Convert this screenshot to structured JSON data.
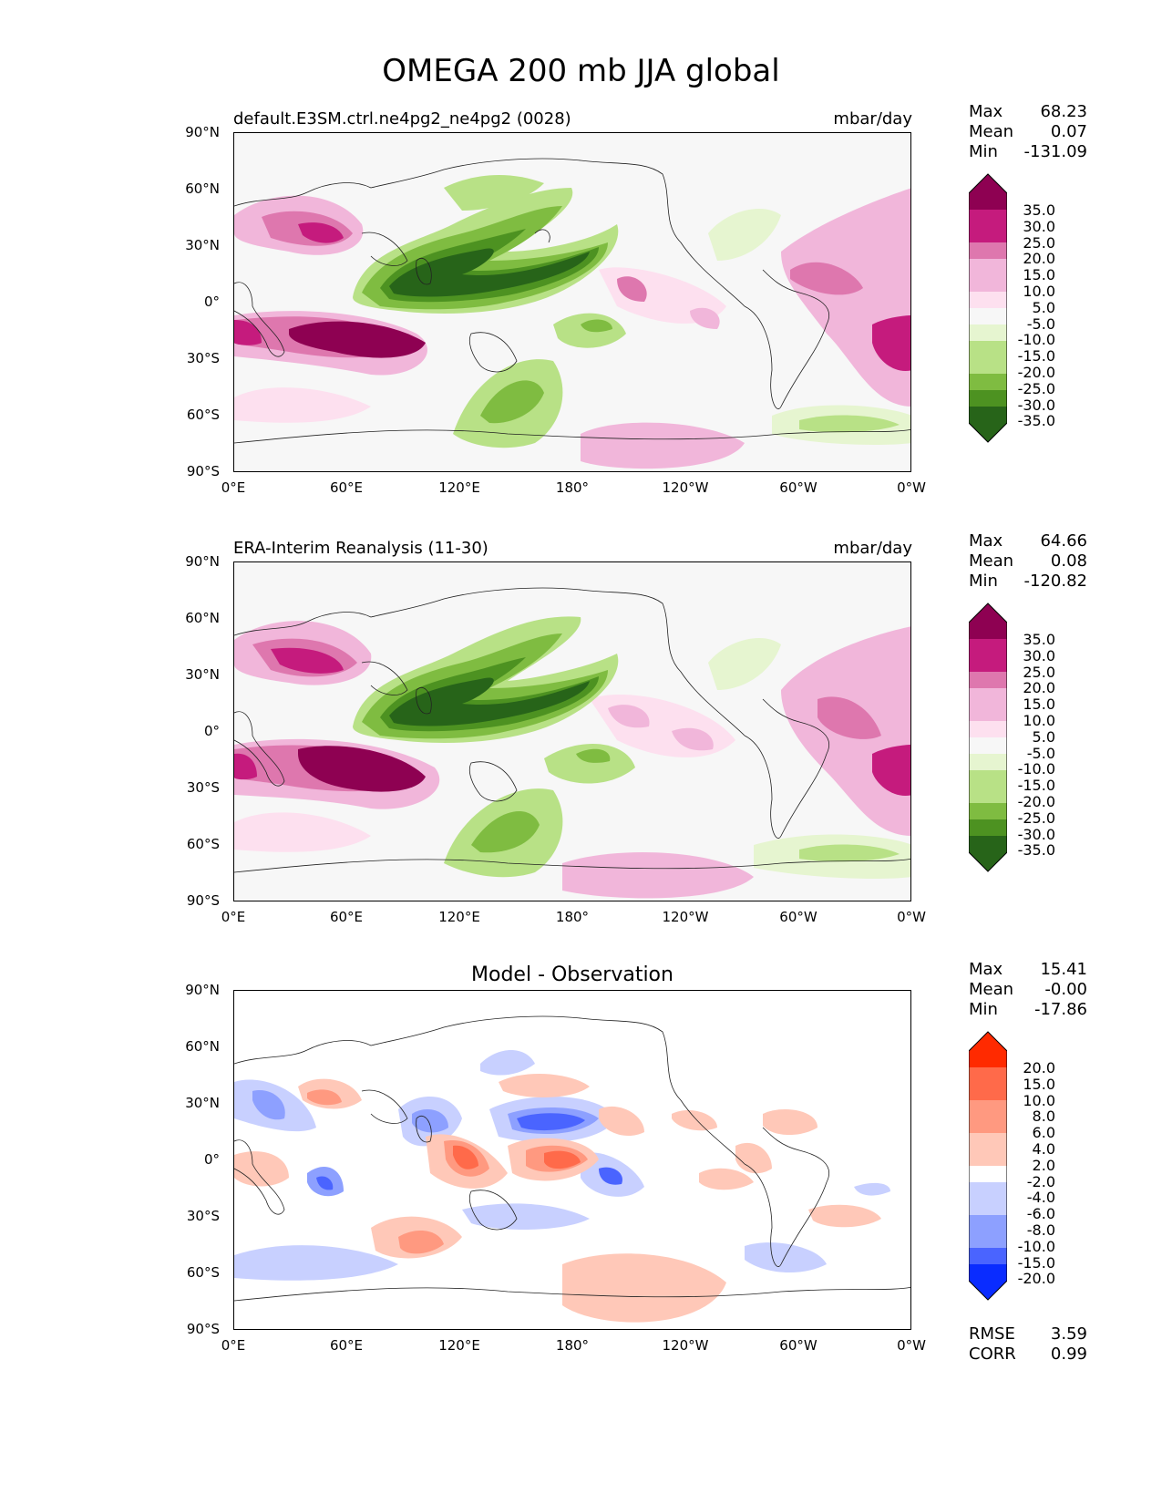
{
  "title": "OMEGA 200 mb JJA global",
  "lat_labels": [
    "90°N",
    "60°N",
    "30°N",
    "0°",
    "30°S",
    "60°S",
    "90°S"
  ],
  "lon_labels": [
    "0°E",
    "60°E",
    "120°E",
    "180°",
    "120°W",
    "60°W",
    "0°W"
  ],
  "panels": [
    {
      "subtitle_left": "default.E3SM.ctrl.ne4pg2_ne4pg2 (0028)",
      "subtitle_right": "mbar/day",
      "stats": {
        "max_label": "Max",
        "max": "68.23",
        "mean_label": "Mean",
        "mean": "0.07",
        "min_label": "Min",
        "min": "-131.09"
      },
      "colorbar_labels": [
        "35.0",
        "30.0",
        "25.0",
        "20.0",
        "15.0",
        "10.0",
        "5.0",
        "-5.0",
        "-10.0",
        "-15.0",
        "-20.0",
        "-25.0",
        "-30.0",
        "-35.0"
      ]
    },
    {
      "subtitle_left": "ERA-Interim Reanalysis (11-30)",
      "subtitle_right": "mbar/day",
      "stats": {
        "max_label": "Max",
        "max": "64.66",
        "mean_label": "Mean",
        "mean": "0.08",
        "min_label": "Min",
        "min": "-120.82"
      },
      "colorbar_labels": [
        "35.0",
        "30.0",
        "25.0",
        "20.0",
        "15.0",
        "10.0",
        "5.0",
        "-5.0",
        "-10.0",
        "-15.0",
        "-20.0",
        "-25.0",
        "-30.0",
        "-35.0"
      ]
    },
    {
      "subtitle_center": "Model - Observation",
      "stats": {
        "max_label": "Max",
        "max": "15.41",
        "mean_label": "Mean",
        "mean": "-0.00",
        "min_label": "Min",
        "min": "-17.86"
      },
      "colorbar_labels": [
        "20.0",
        "15.0",
        "10.0",
        "8.0",
        "6.0",
        "4.0",
        "2.0",
        "-2.0",
        "-4.0",
        "-6.0",
        "-8.0",
        "-10.0",
        "-15.0",
        "-20.0"
      ],
      "rmse_label": "RMSE",
      "rmse": "3.59",
      "corr_label": "CORR",
      "corr": "0.99"
    }
  ],
  "colors": {
    "piyg": [
      "#8e0152",
      "#c51b7d",
      "#de77ae",
      "#f1b6da",
      "#fde0ef",
      "#f7f7f7",
      "#e6f5d0",
      "#b8e186",
      "#7fbc41",
      "#4d9221",
      "#276419"
    ],
    "bwr": [
      "#ff2a00",
      "#ff6a4a",
      "#ff9980",
      "#ffc8b8",
      "#ffffff",
      "#c8d0ff",
      "#8da0ff",
      "#4a64ff",
      "#0a2cff"
    ]
  }
}
